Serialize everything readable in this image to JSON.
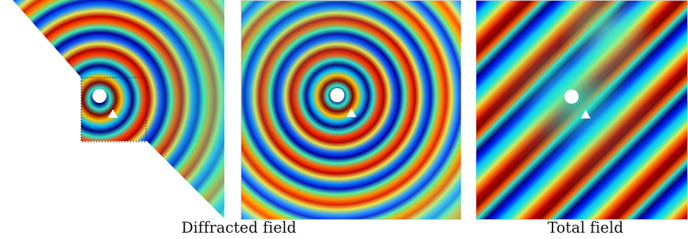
{
  "figure": {
    "captions": {
      "diffracted": "Diffracted field",
      "total": "Total field"
    },
    "colormap": {
      "name": "jet",
      "stops": [
        "#00007f",
        "#0000ff",
        "#00c0ff",
        "#2ee6c8",
        "#7fff7f",
        "#e8e84a",
        "#ff8000",
        "#ff0000",
        "#7f0000"
      ]
    },
    "markers": {
      "scatterer_circle_color": "#ffffff",
      "receiver_triangle_color": "#ffffff"
    },
    "panels": [
      {
        "id": "diffracted-truncated",
        "description_shown": false
      },
      {
        "id": "diffracted-full",
        "description_shown": false
      },
      {
        "id": "total-field",
        "description_shown": false
      }
    ]
  }
}
